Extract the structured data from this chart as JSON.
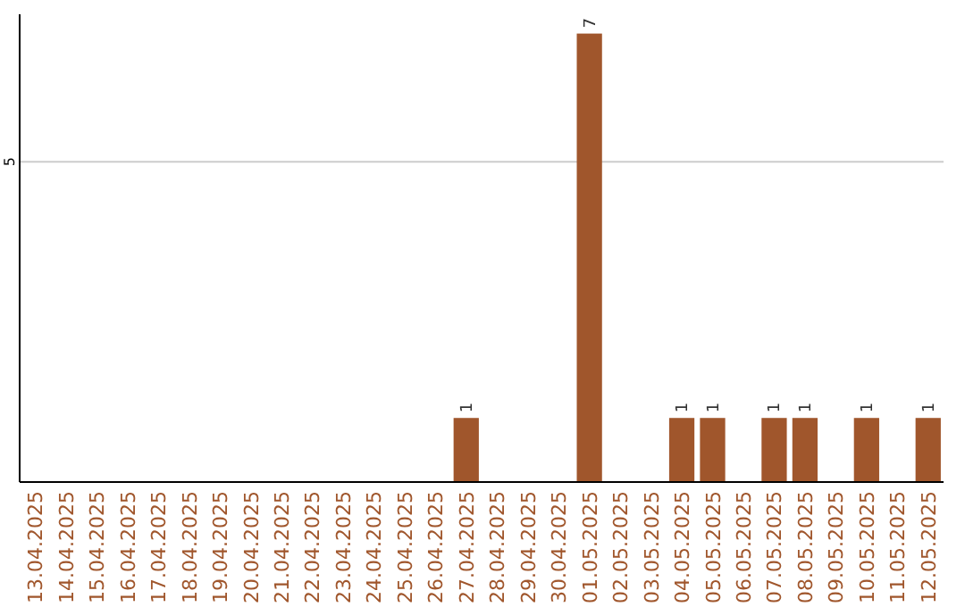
{
  "chart_data": {
    "type": "bar",
    "categories": [
      "13.04.2025",
      "14.04.2025",
      "15.04.2025",
      "16.04.2025",
      "17.04.2025",
      "18.04.2025",
      "19.04.2025",
      "20.04.2025",
      "21.04.2025",
      "22.04.2025",
      "23.04.2025",
      "24.04.2025",
      "25.04.2025",
      "26.04.2025",
      "27.04.2025",
      "28.04.2025",
      "29.04.2025",
      "30.04.2025",
      "01.05.2025",
      "02.05.2025",
      "03.05.2025",
      "04.05.2025",
      "05.05.2025",
      "06.05.2025",
      "07.05.2025",
      "08.05.2025",
      "09.05.2025",
      "10.05.2025",
      "11.05.2025",
      "12.05.2025"
    ],
    "values": [
      null,
      null,
      null,
      null,
      null,
      null,
      null,
      null,
      null,
      null,
      null,
      null,
      null,
      null,
      1,
      null,
      null,
      null,
      7,
      null,
      null,
      1,
      1,
      null,
      1,
      1,
      null,
      1,
      null,
      1
    ],
    "data_labels": true,
    "color": "#a0562c",
    "ref_lines": [
      {
        "axis": "y",
        "value": 5,
        "label": "5",
        "color": "#cccccc"
      }
    ]
  }
}
